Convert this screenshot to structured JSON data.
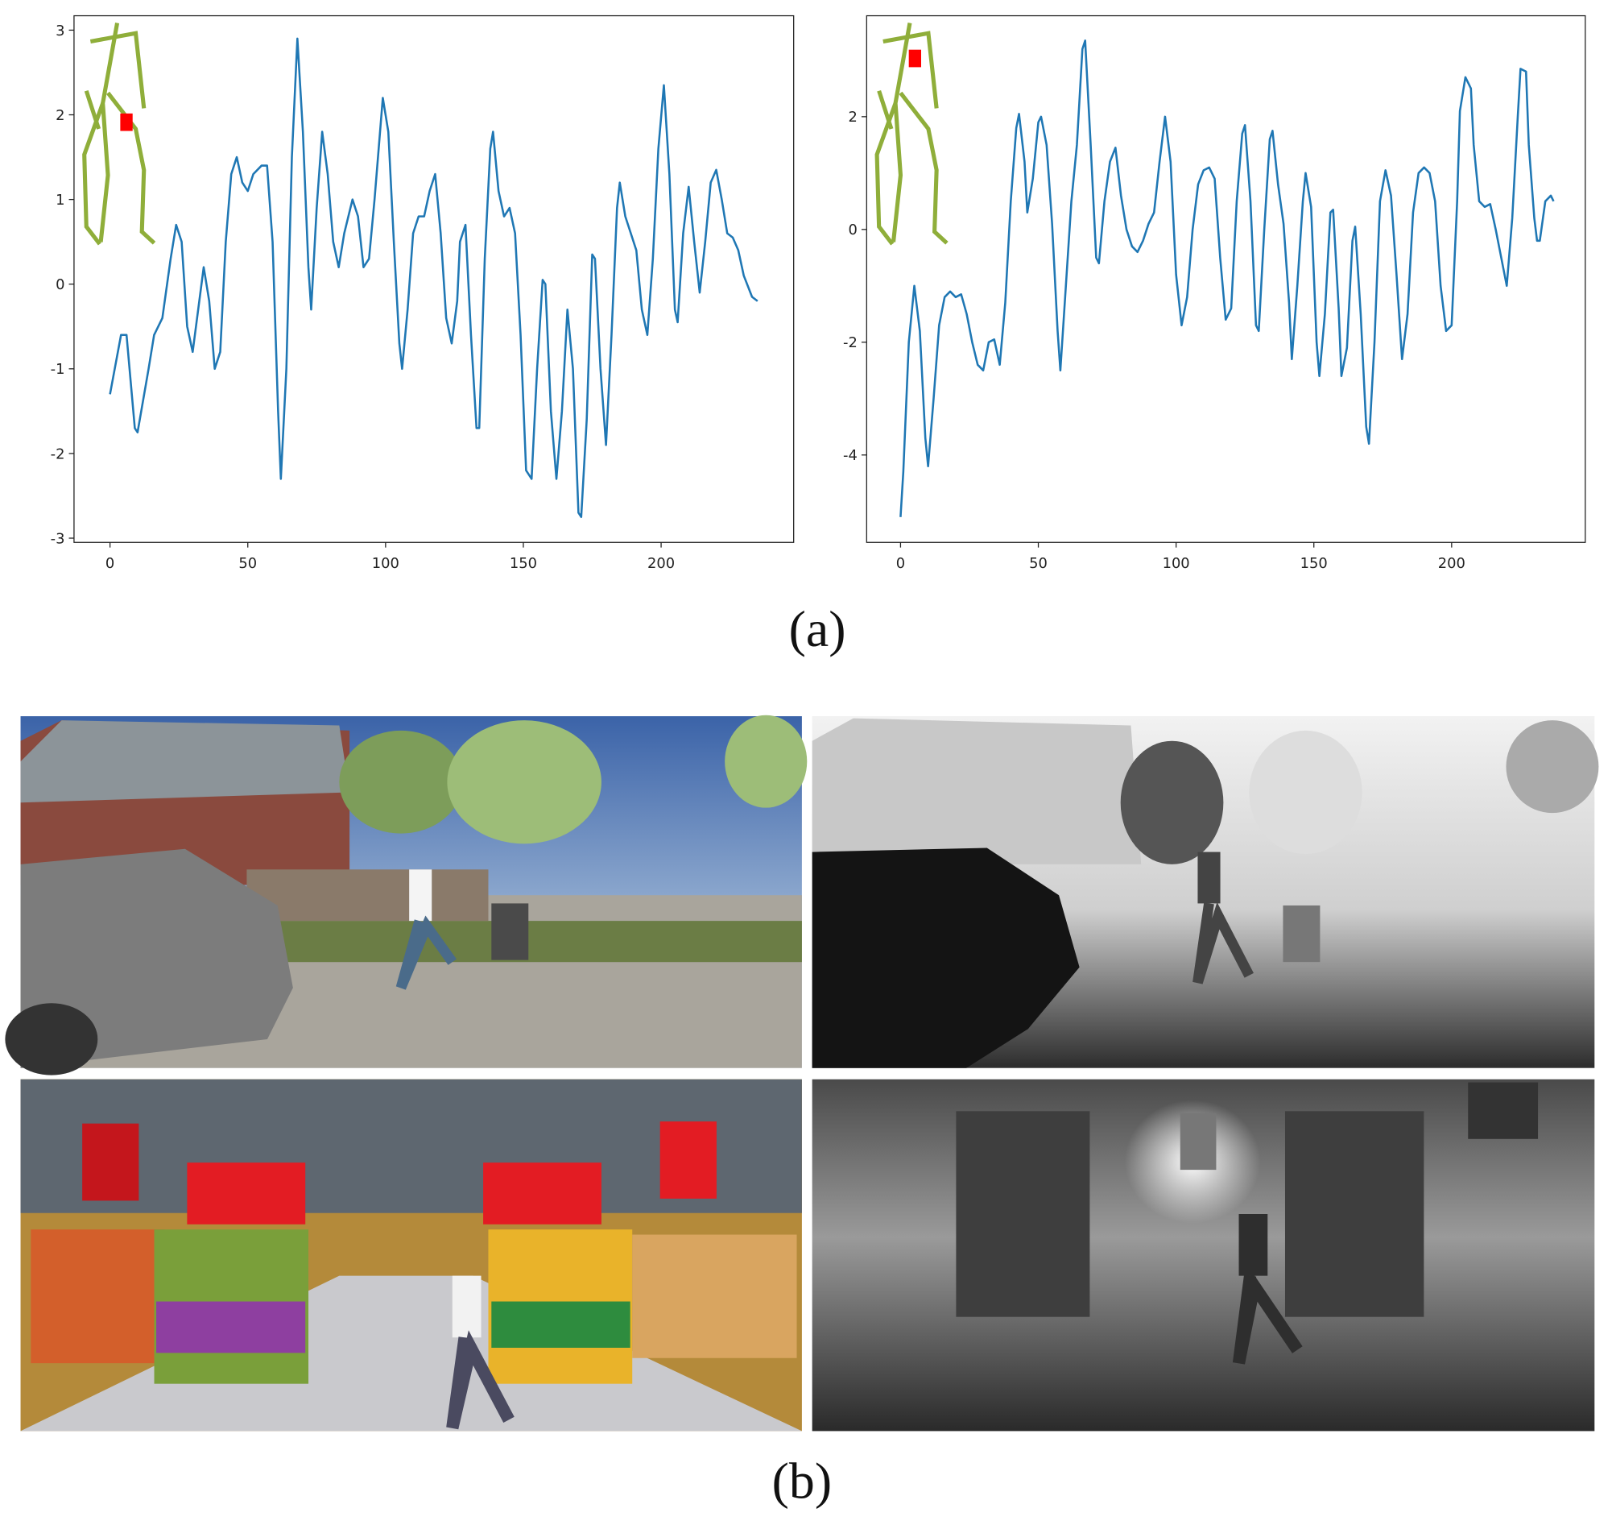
{
  "chart_data": [
    {
      "type": "line",
      "x": [
        0,
        4,
        6,
        9,
        10,
        14,
        16,
        19,
        22,
        24,
        26,
        28,
        30,
        32,
        34,
        36,
        38,
        40,
        42,
        44,
        46,
        48,
        50,
        52,
        55,
        57,
        59,
        61,
        62,
        64,
        66,
        68,
        70,
        72,
        73,
        75,
        77,
        79,
        81,
        83,
        85,
        88,
        90,
        92,
        94,
        96,
        98,
        99,
        101,
        103,
        105,
        106,
        108,
        110,
        112,
        114,
        116,
        118,
        120,
        122,
        124,
        126,
        127,
        129,
        131,
        133,
        134,
        136,
        138,
        139,
        141,
        143,
        145,
        147,
        149,
        151,
        153,
        155,
        157,
        158,
        160,
        162,
        164,
        166,
        168,
        170,
        171,
        173,
        175,
        176,
        178,
        180,
        182,
        184,
        185,
        187,
        189,
        191,
        193,
        195,
        197,
        199,
        201,
        203,
        205,
        206,
        208,
        210,
        212,
        214,
        216,
        218,
        220,
        222,
        224,
        226,
        228,
        230,
        233,
        235
      ],
      "series": [
        {
          "color": "#1f77b4",
          "values": [
            -1.3,
            -0.6,
            -0.6,
            -1.7,
            -1.75,
            -1.0,
            -0.6,
            -0.4,
            0.3,
            0.7,
            0.5,
            -0.5,
            -0.8,
            -0.3,
            0.2,
            -0.2,
            -1.0,
            -0.8,
            0.5,
            1.3,
            1.5,
            1.2,
            1.1,
            1.3,
            1.4,
            1.4,
            0.5,
            -1.5,
            -2.3,
            -1.0,
            1.5,
            2.9,
            1.8,
            0.2,
            -0.3,
            0.9,
            1.8,
            1.3,
            0.5,
            0.2,
            0.6,
            1.0,
            0.8,
            0.2,
            0.3,
            1.0,
            1.8,
            2.2,
            1.8,
            0.5,
            -0.7,
            -1.0,
            -0.3,
            0.6,
            0.8,
            0.8,
            1.1,
            1.3,
            0.6,
            -0.4,
            -0.7,
            -0.2,
            0.5,
            0.7,
            -0.6,
            -1.7,
            -1.7,
            0.3,
            1.6,
            1.8,
            1.1,
            0.8,
            0.9,
            0.6,
            -0.6,
            -2.2,
            -2.3,
            -1.0,
            0.05,
            0.0,
            -1.5,
            -2.3,
            -1.5,
            -0.3,
            -1.0,
            -2.7,
            -2.75,
            -1.6,
            0.35,
            0.3,
            -1.0,
            -1.9,
            -0.6,
            0.9,
            1.2,
            0.8,
            0.6,
            0.4,
            -0.3,
            -0.6,
            0.3,
            1.6,
            2.35,
            1.3,
            -0.3,
            -0.45,
            0.6,
            1.15,
            0.5,
            -0.1,
            0.5,
            1.2,
            1.35,
            1.0,
            0.6,
            0.55,
            0.4,
            0.1,
            -0.15,
            -0.2
          ]
        }
      ],
      "xlim": [
        -13.06,
        248.1
      ],
      "ylim": [
        -3.05,
        3.17
      ],
      "xticks": [
        0,
        50,
        100,
        150,
        200
      ],
      "yticks": [
        -3,
        -2,
        -1,
        0,
        1,
        2,
        3
      ]
    },
    {
      "type": "line",
      "x": [
        0,
        1,
        3,
        5,
        7,
        9,
        10,
        12,
        14,
        16,
        18,
        20,
        22,
        24,
        26,
        28,
        30,
        32,
        34,
        36,
        38,
        40,
        42,
        43,
        45,
        46,
        48,
        50,
        51,
        53,
        55,
        57,
        58,
        60,
        62,
        64,
        66,
        67,
        69,
        71,
        72,
        74,
        76,
        78,
        80,
        82,
        84,
        86,
        88,
        90,
        92,
        94,
        96,
        98,
        100,
        102,
        104,
        106,
        108,
        110,
        112,
        114,
        116,
        118,
        120,
        122,
        124,
        125,
        127,
        129,
        130,
        132,
        134,
        135,
        137,
        139,
        141,
        142,
        144,
        146,
        147,
        149,
        151,
        152,
        154,
        156,
        157,
        159,
        160,
        162,
        164,
        165,
        167,
        169,
        170,
        172,
        174,
        176,
        178,
        180,
        182,
        184,
        186,
        188,
        190,
        192,
        194,
        196,
        198,
        200,
        202,
        203,
        205,
        207,
        208,
        210,
        212,
        214,
        216,
        218,
        220,
        222,
        224,
        225,
        227,
        228,
        230,
        231,
        232,
        234,
        236,
        237
      ],
      "series": [
        {
          "color": "#1f77b4",
          "values": [
            -5.1,
            -4.3,
            -2.0,
            -1.0,
            -1.8,
            -3.7,
            -4.2,
            -3.0,
            -1.7,
            -1.2,
            -1.1,
            -1.2,
            -1.15,
            -1.5,
            -2.0,
            -2.4,
            -2.5,
            -2.0,
            -1.95,
            -2.4,
            -1.3,
            0.5,
            1.8,
            2.05,
            1.2,
            0.3,
            0.9,
            1.9,
            2.0,
            1.5,
            0.1,
            -1.8,
            -2.5,
            -1.0,
            0.5,
            1.5,
            3.2,
            3.35,
            1.5,
            -0.5,
            -0.6,
            0.5,
            1.2,
            1.45,
            0.6,
            0.0,
            -0.3,
            -0.4,
            -0.2,
            0.1,
            0.3,
            1.2,
            2.0,
            1.2,
            -0.8,
            -1.7,
            -1.2,
            0.0,
            0.8,
            1.05,
            1.1,
            0.9,
            -0.5,
            -1.6,
            -1.4,
            0.5,
            1.7,
            1.85,
            0.5,
            -1.7,
            -1.8,
            0.0,
            1.6,
            1.75,
            0.8,
            0.1,
            -1.3,
            -2.3,
            -1.0,
            0.5,
            1.0,
            0.4,
            -2.0,
            -2.6,
            -1.5,
            0.3,
            0.35,
            -1.4,
            -2.6,
            -2.1,
            -0.2,
            0.05,
            -1.5,
            -3.5,
            -3.8,
            -2.0,
            0.5,
            1.05,
            0.6,
            -0.8,
            -2.3,
            -1.5,
            0.3,
            1.0,
            1.1,
            1.0,
            0.5,
            -1.0,
            -1.8,
            -1.7,
            0.5,
            2.1,
            2.7,
            2.5,
            1.5,
            0.5,
            0.4,
            0.45,
            0.0,
            -0.5,
            -1.0,
            0.2,
            2.0,
            2.85,
            2.8,
            1.5,
            0.2,
            -0.2,
            -0.2,
            0.5,
            0.6,
            0.5
          ]
        }
      ],
      "xlim": [
        -12.3,
        248.5
      ],
      "ylim": [
        -5.55,
        3.79
      ],
      "xticks": [
        0,
        50,
        100,
        150,
        200
      ],
      "yticks": [
        -4,
        -2,
        0,
        2
      ]
    }
  ],
  "captions": {
    "a": "(a)",
    "b": "(b)"
  }
}
